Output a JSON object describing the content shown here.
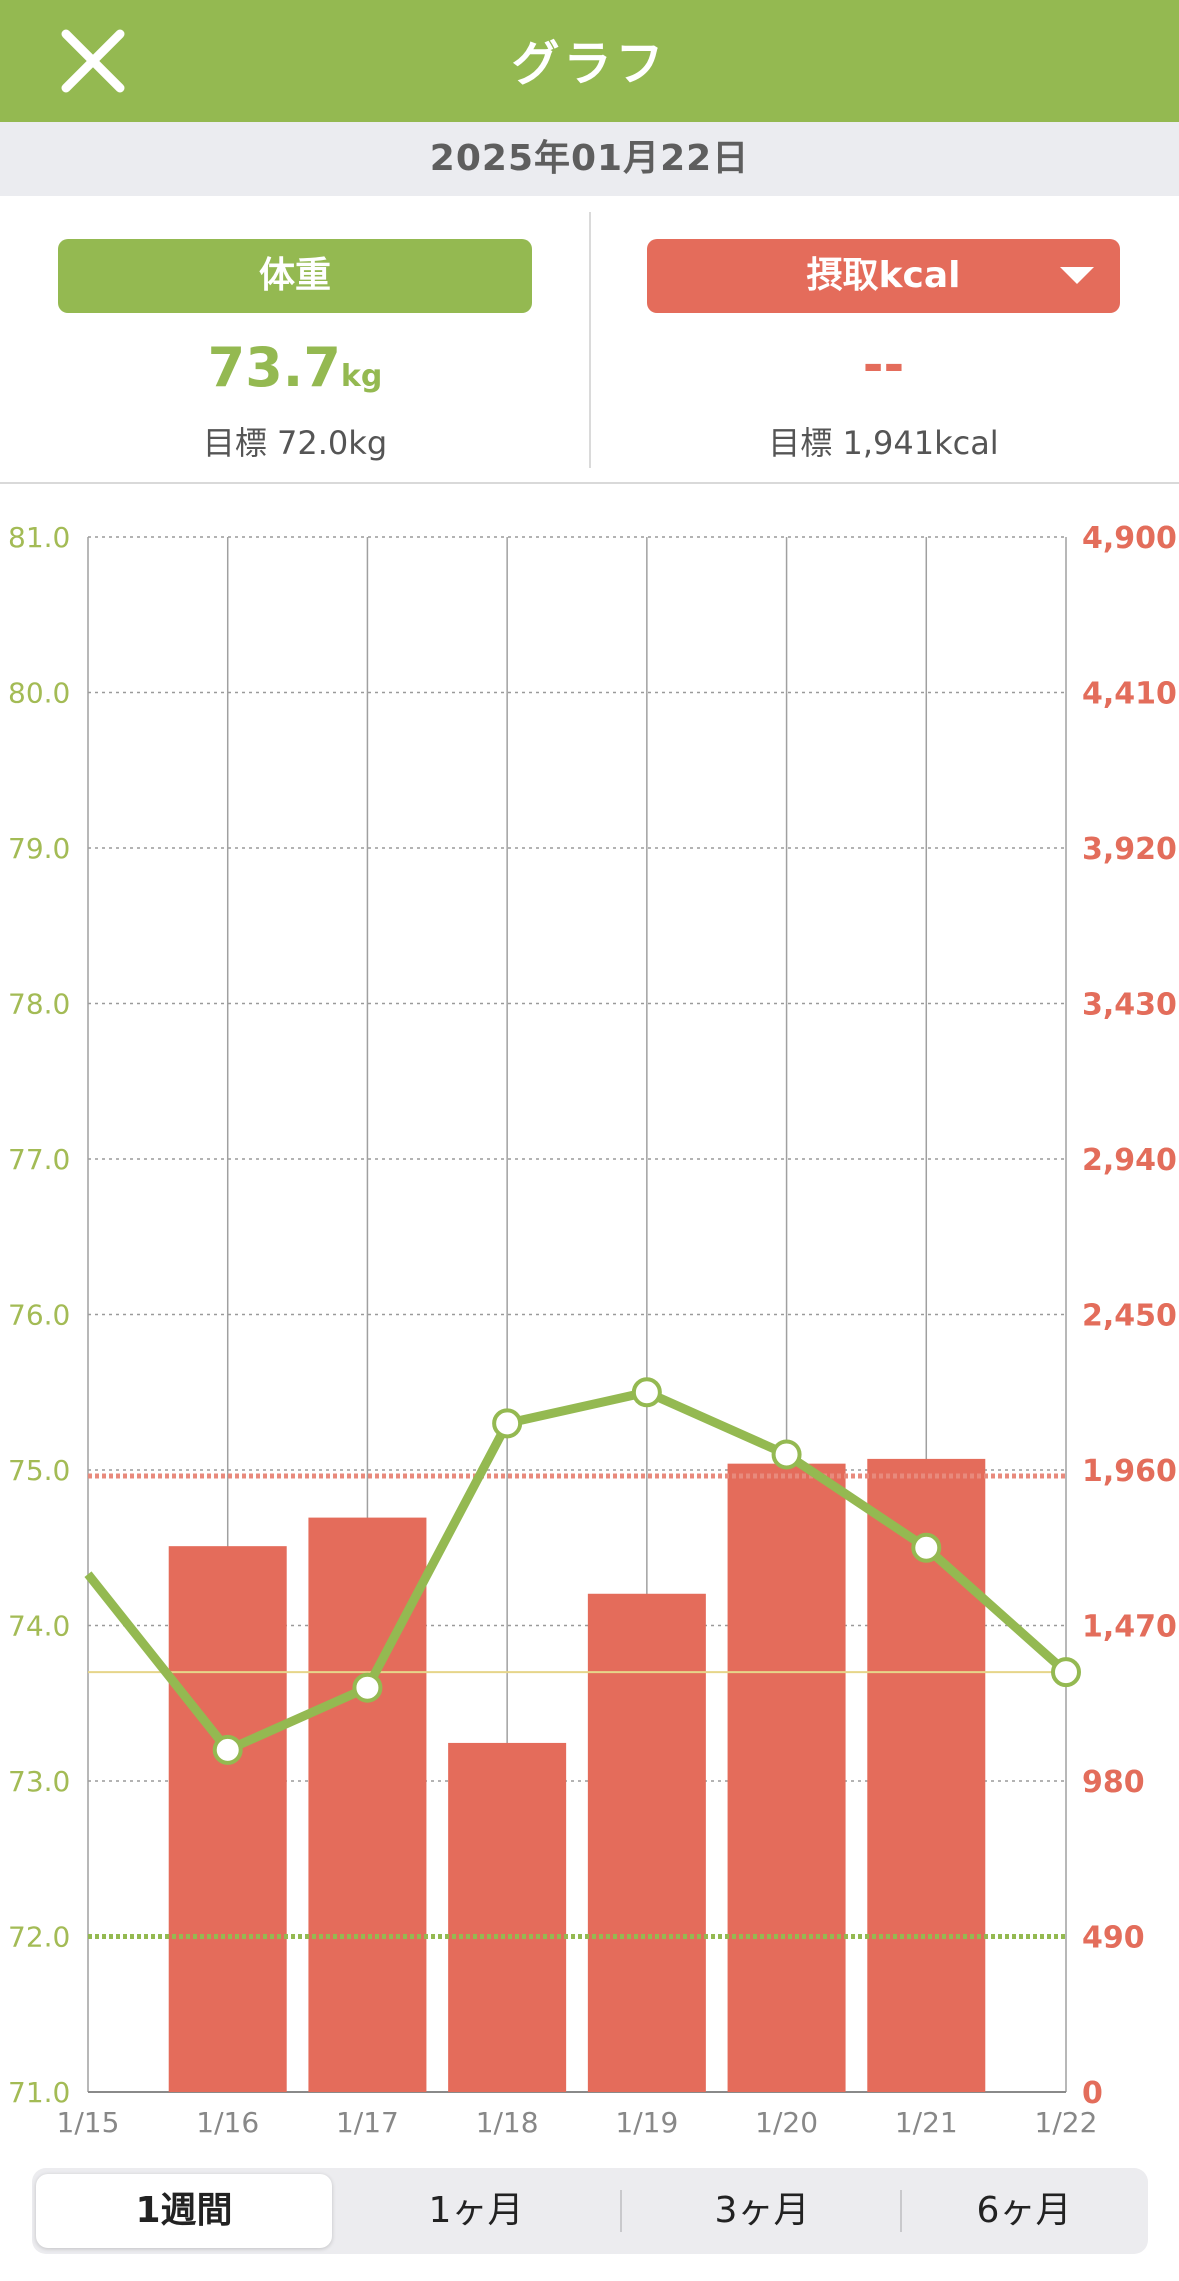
{
  "header": {
    "title": "グラフ",
    "close_icon": "close-icon"
  },
  "date_label": "2025年01月22日",
  "weight": {
    "label": "体重",
    "value": "73.7",
    "unit": "kg",
    "goal": "目標 72.0kg"
  },
  "kcal": {
    "label": "摂取kcal",
    "value": "--",
    "goal": "目標 1,941kcal"
  },
  "segments": [
    {
      "label": "1週間",
      "selected": true
    },
    {
      "label": "1ヶ月",
      "selected": false
    },
    {
      "label": "3ヶ月",
      "selected": false
    },
    {
      "label": "6ヶ月",
      "selected": false
    }
  ],
  "colors": {
    "weight": "#94b951",
    "kcal": "#e46c5b",
    "header": "#94b951"
  },
  "chart_data": {
    "type": "bar+line",
    "categories": [
      "1/15",
      "1/16",
      "1/17",
      "1/18",
      "1/19",
      "1/20",
      "1/21",
      "1/22"
    ],
    "left_axis": {
      "ticks": [
        "71.0",
        "72.0",
        "73.0",
        "74.0",
        "75.0",
        "76.0",
        "77.0",
        "78.0",
        "79.0",
        "80.0",
        "81.0"
      ],
      "ylim": [
        71,
        81
      ]
    },
    "right_axis": {
      "ticks": [
        "0",
        "490",
        "980",
        "1,470",
        "1,960",
        "2,450",
        "2,940",
        "3,430",
        "3,920",
        "4,410",
        "4,900"
      ],
      "ylim": [
        0,
        4900
      ]
    },
    "series": [
      {
        "type": "bar",
        "axis": "right",
        "values": [
          null,
          1720,
          1810,
          1100,
          1570,
          1980,
          1995,
          null
        ]
      },
      {
        "type": "line",
        "axis": "left",
        "values": [
          74.33,
          73.2,
          73.6,
          75.3,
          75.5,
          75.1,
          74.5,
          73.7
        ]
      }
    ],
    "reference_lines": [
      {
        "axis": "left",
        "value": 72.0,
        "style": "dotted",
        "color": "#94b951"
      },
      {
        "axis": "right",
        "value": 1941,
        "style": "dotted",
        "color": "#e88a7c"
      },
      {
        "axis": "left",
        "value": 73.7,
        "style": "solid",
        "color": "#e6d58a"
      }
    ],
    "grid": true
  }
}
